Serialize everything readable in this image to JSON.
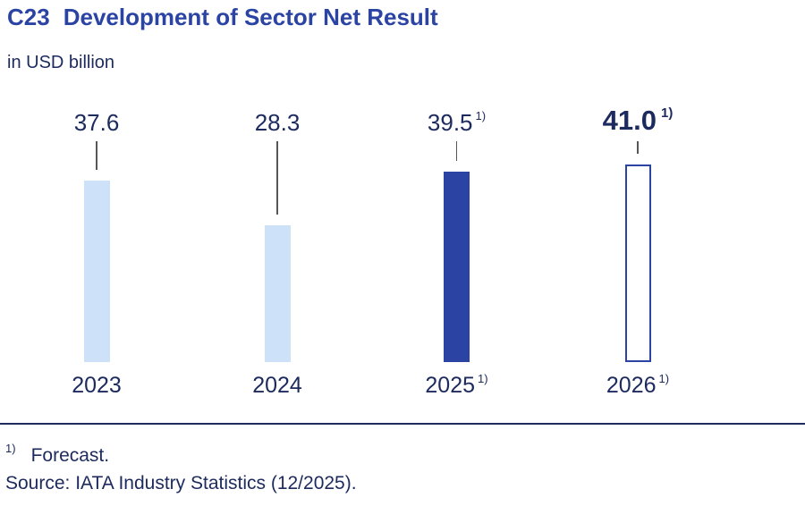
{
  "chart_data": {
    "type": "bar",
    "title_id": "C23",
    "title": "Development of Sector Net Result",
    "subtitle": "in USD billion",
    "categories": [
      "2023",
      "2024",
      "2025",
      "2026"
    ],
    "category_superscripts": [
      "",
      "",
      "1)",
      "1)"
    ],
    "values": [
      37.6,
      28.3,
      39.5,
      41.0
    ],
    "value_labels": [
      "37.6",
      "28.3",
      "39.5",
      "41.0"
    ],
    "value_superscripts": [
      "",
      "",
      "1)",
      "1)"
    ],
    "value_label_emphasis": [
      false,
      false,
      false,
      true
    ],
    "bar_styles": [
      "light",
      "light",
      "solid",
      "outline"
    ],
    "xlabel": "",
    "ylabel": "USD billion",
    "ylim": [
      0,
      41
    ],
    "grid": false,
    "legend": "none",
    "footnote_marker": "1)",
    "footnote_text": "Forecast.",
    "source": "Source: IATA Industry Statistics (12/2025).",
    "colors": {
      "bar_light": "#cde1f9",
      "bar_solid": "#2b44a3",
      "bar_outline_border": "#2b44a3",
      "title_blue": "#2b44a3",
      "text_navy": "#1c2a5e",
      "connector_gray": "#55565a"
    }
  }
}
